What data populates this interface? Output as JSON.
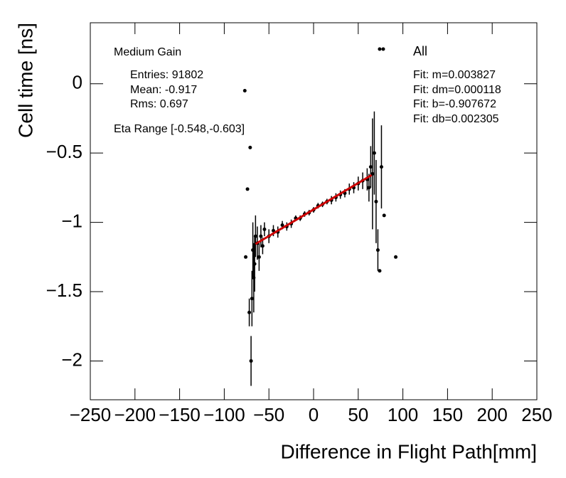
{
  "chart_data": {
    "type": "scatter",
    "xlabel": "Difference in Flight Path[mm]",
    "ylabel": "Cell time [ns]",
    "xlim": [
      -250,
      250
    ],
    "ylim": [
      -2.28,
      0.44
    ],
    "xticks": [
      {
        "value": -250,
        "label": "−250"
      },
      {
        "value": -200,
        "label": "−200"
      },
      {
        "value": -150,
        "label": "−150"
      },
      {
        "value": -100,
        "label": "−100"
      },
      {
        "value": -50,
        "label": "−50"
      },
      0,
      50,
      100,
      150,
      200,
      250
    ],
    "yticks": [
      {
        "value": -2,
        "label": "−2"
      },
      {
        "value": -1.5,
        "label": "−1.5"
      },
      {
        "value": -1,
        "label": "−1"
      },
      {
        "value": -0.5,
        "label": "−0.5"
      },
      0
    ],
    "annotations_left": [
      "Medium Gain",
      "Entries: 91802",
      "Mean: -0.917",
      "Rms: 0.697",
      "Eta Range [-0.548,-0.603]"
    ],
    "annotations_right": [
      "All",
      "Fit: m=0.003827",
      "Fit: dm=0.000118",
      "Fit: b=-0.907672",
      "Fit: db=0.002305"
    ],
    "series": [
      {
        "color": "#000000",
        "x": [
          -77,
          -76,
          -74,
          -72,
          -71,
          -70,
          -69,
          -68,
          -67,
          -66,
          -65,
          -63,
          -61,
          -59,
          -57,
          -55,
          -50,
          -45,
          -40,
          -35,
          -30,
          -25,
          -20,
          -15,
          -10,
          -5,
          0,
          5,
          10,
          15,
          20,
          25,
          30,
          35,
          40,
          45,
          50,
          55,
          60,
          62,
          64,
          66,
          68,
          70,
          72,
          74,
          74,
          76,
          78,
          79,
          92
        ],
        "values": [
          -0.05,
          -1.25,
          -0.76,
          -1.65,
          -0.46,
          -2.0,
          -1.55,
          -1.2,
          -1.4,
          -1.3,
          -1.1,
          -1.15,
          -1.25,
          -1.1,
          -1.17,
          -1.05,
          -1.1,
          -1.06,
          -1.07,
          -1.02,
          -1.03,
          -1.01,
          -0.97,
          -0.97,
          -0.94,
          -0.93,
          -0.91,
          -0.88,
          -0.87,
          -0.85,
          -0.84,
          -0.82,
          -0.8,
          -0.79,
          -0.76,
          -0.75,
          -0.72,
          -0.7,
          -0.69,
          -0.75,
          -0.6,
          -0.65,
          -0.5,
          -0.85,
          -1.2,
          0.25,
          -1.35,
          -0.6,
          0.25,
          -0.95,
          -1.25
        ],
        "errors": [
          0,
          0,
          0,
          0.1,
          0,
          0.18,
          0.2,
          0.2,
          0.25,
          0.2,
          0.15,
          0.12,
          0.1,
          0.08,
          0.06,
          0.05,
          0.05,
          0.04,
          0.04,
          0.03,
          0.03,
          0.03,
          0.02,
          0.02,
          0.02,
          0.02,
          0.02,
          0.02,
          0.02,
          0.02,
          0.03,
          0.03,
          0.03,
          0.03,
          0.04,
          0.04,
          0.05,
          0.06,
          0.08,
          0.1,
          0.15,
          0.4,
          0.3,
          0.3,
          0.15,
          0,
          0,
          0.3,
          0,
          0,
          0
        ]
      }
    ],
    "fit_line": {
      "color": "#cc0000",
      "x": [
        -65,
        65
      ],
      "values": [
        -1.156,
        -0.659
      ]
    }
  }
}
